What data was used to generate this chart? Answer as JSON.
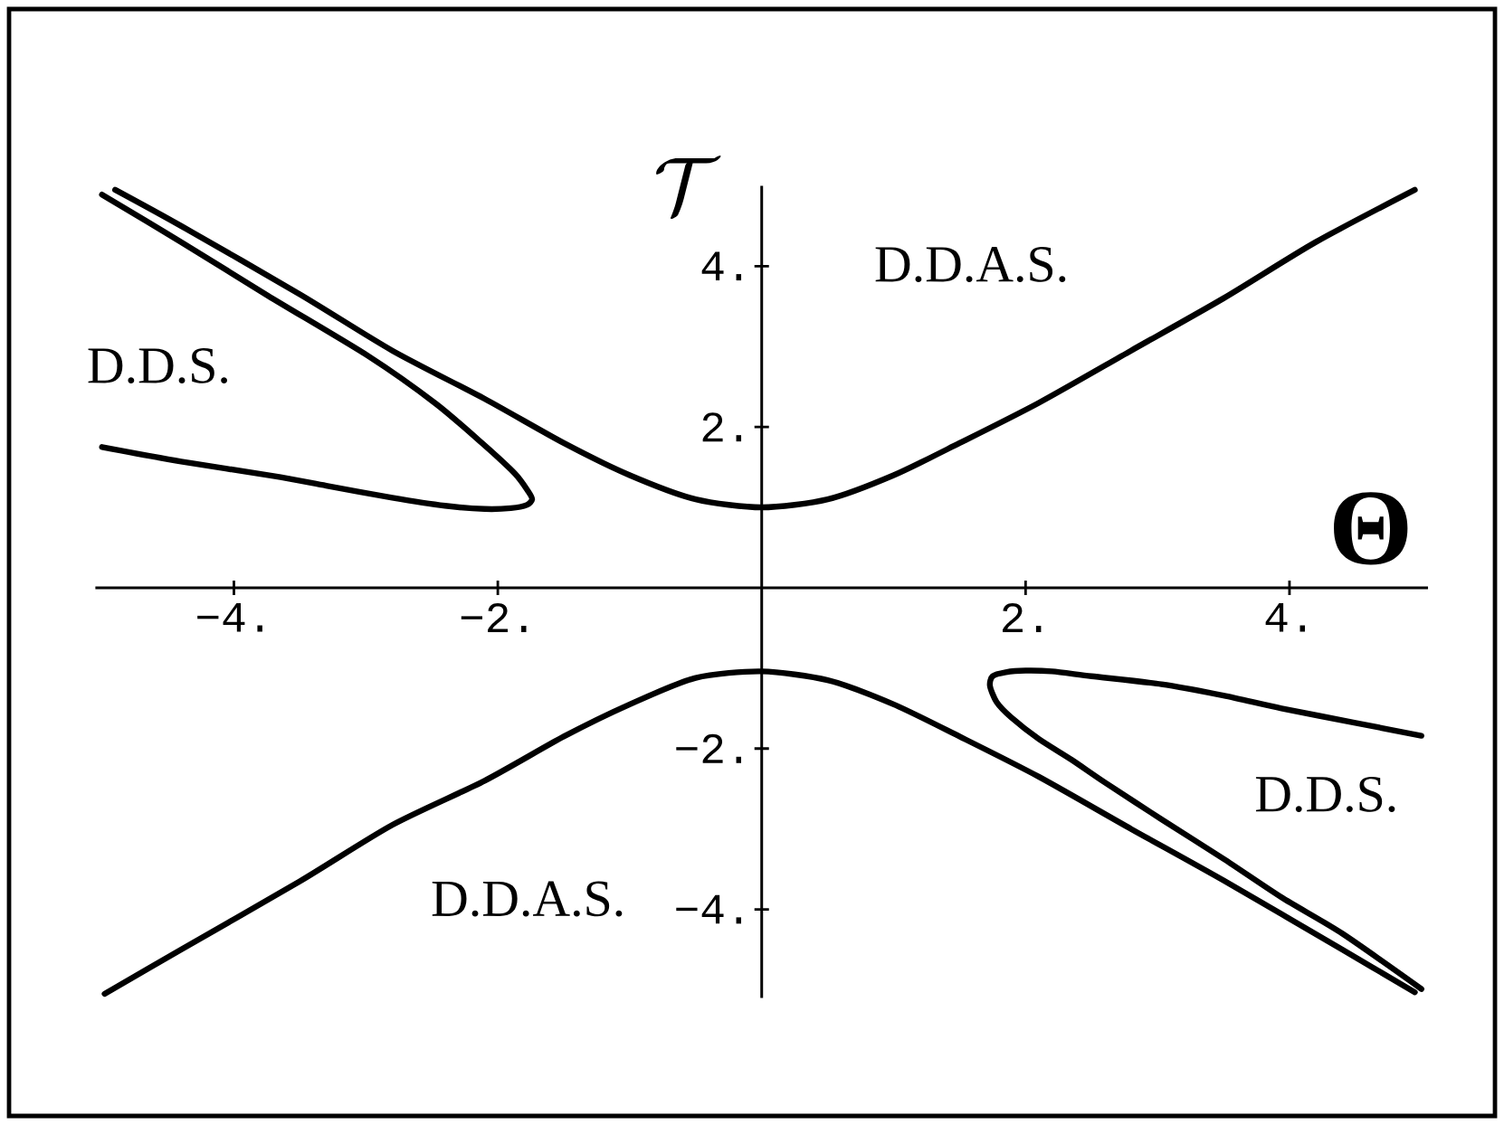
{
  "chart_data": {
    "type": "line",
    "xlabel": "Θ",
    "ylabel": "\\mathcal{T}",
    "xlim": [
      -5.05,
      5.05
    ],
    "ylim": [
      -5.1,
      5.0
    ],
    "xticks": [
      {
        "value": -4,
        "label": "−4."
      },
      {
        "value": -2,
        "label": "−2."
      },
      {
        "value": 2,
        "label": "2."
      },
      {
        "value": 4,
        "label": "4."
      }
    ],
    "yticks": [
      {
        "value": -4,
        "label": "−4."
      },
      {
        "value": -2,
        "label": "−2."
      },
      {
        "value": 2,
        "label": "2."
      },
      {
        "value": 4,
        "label": "4."
      }
    ],
    "marker": "none",
    "line_style": "solid",
    "series": [
      {
        "color": "#000000",
        "x": [
          -4.9,
          -4.4,
          -3.5,
          -2.8,
          -2.1,
          -1.5,
          -1.0,
          -0.5,
          0,
          0.5,
          1.0,
          1.5,
          2.1,
          2.8,
          3.5,
          4.2,
          4.95
        ],
        "values": [
          4.95,
          4.5,
          3.65,
          2.95,
          2.35,
          1.8,
          1.4,
          1.1,
          1.0,
          1.1,
          1.4,
          1.8,
          2.3,
          2.95,
          3.6,
          4.3,
          4.95
        ]
      },
      {
        "color": "#000000",
        "x": [
          -4.98,
          -4.4,
          -3.5,
          -2.8,
          -2.1,
          -1.5,
          -1.0,
          -0.5,
          0,
          0.5,
          1.0,
          1.5,
          2.1,
          2.8,
          3.5,
          4.4,
          4.95
        ],
        "values": [
          -5.05,
          -4.5,
          -3.65,
          -2.95,
          -2.4,
          -1.85,
          -1.45,
          -1.12,
          -1.04,
          -1.15,
          -1.45,
          -1.85,
          -2.35,
          -3.0,
          -3.64,
          -4.5,
          -5.03
        ]
      },
      {
        "color": "#000000",
        "x": [
          -5.0,
          -4.4,
          -3.74,
          -2.98,
          -2.47,
          -2.12,
          -1.87,
          -1.77,
          -1.74,
          -1.78,
          -1.9,
          -2.1,
          -2.4,
          -2.8,
          -3.3,
          -3.7,
          -4.4,
          -5.0
        ],
        "values": [
          4.89,
          4.3,
          3.63,
          2.88,
          2.29,
          1.8,
          1.42,
          1.2,
          1.1,
          1.03,
          0.99,
          0.98,
          1.02,
          1.12,
          1.27,
          1.39,
          1.57,
          1.75
        ]
      },
      {
        "color": "#000000",
        "x": [
          5.0,
          4.4,
          3.94,
          3.5,
          3.03,
          2.6,
          2.35,
          2.1,
          1.89,
          1.78,
          1.73,
          1.75,
          1.85,
          2.0,
          2.2,
          2.5,
          3.03,
          3.5,
          3.94,
          4.5,
          5.0
        ],
        "values": [
          -4.99,
          -4.3,
          -3.85,
          -3.37,
          -2.88,
          -2.42,
          -2.14,
          -1.88,
          -1.61,
          -1.42,
          -1.22,
          -1.1,
          -1.05,
          -1.03,
          -1.04,
          -1.1,
          -1.2,
          -1.34,
          -1.5,
          -1.68,
          -1.84
        ]
      }
    ],
    "annotations": [
      "D.D.S.",
      "D.D.A.S.",
      "D.D.S.",
      "D.D.A.S."
    ]
  }
}
